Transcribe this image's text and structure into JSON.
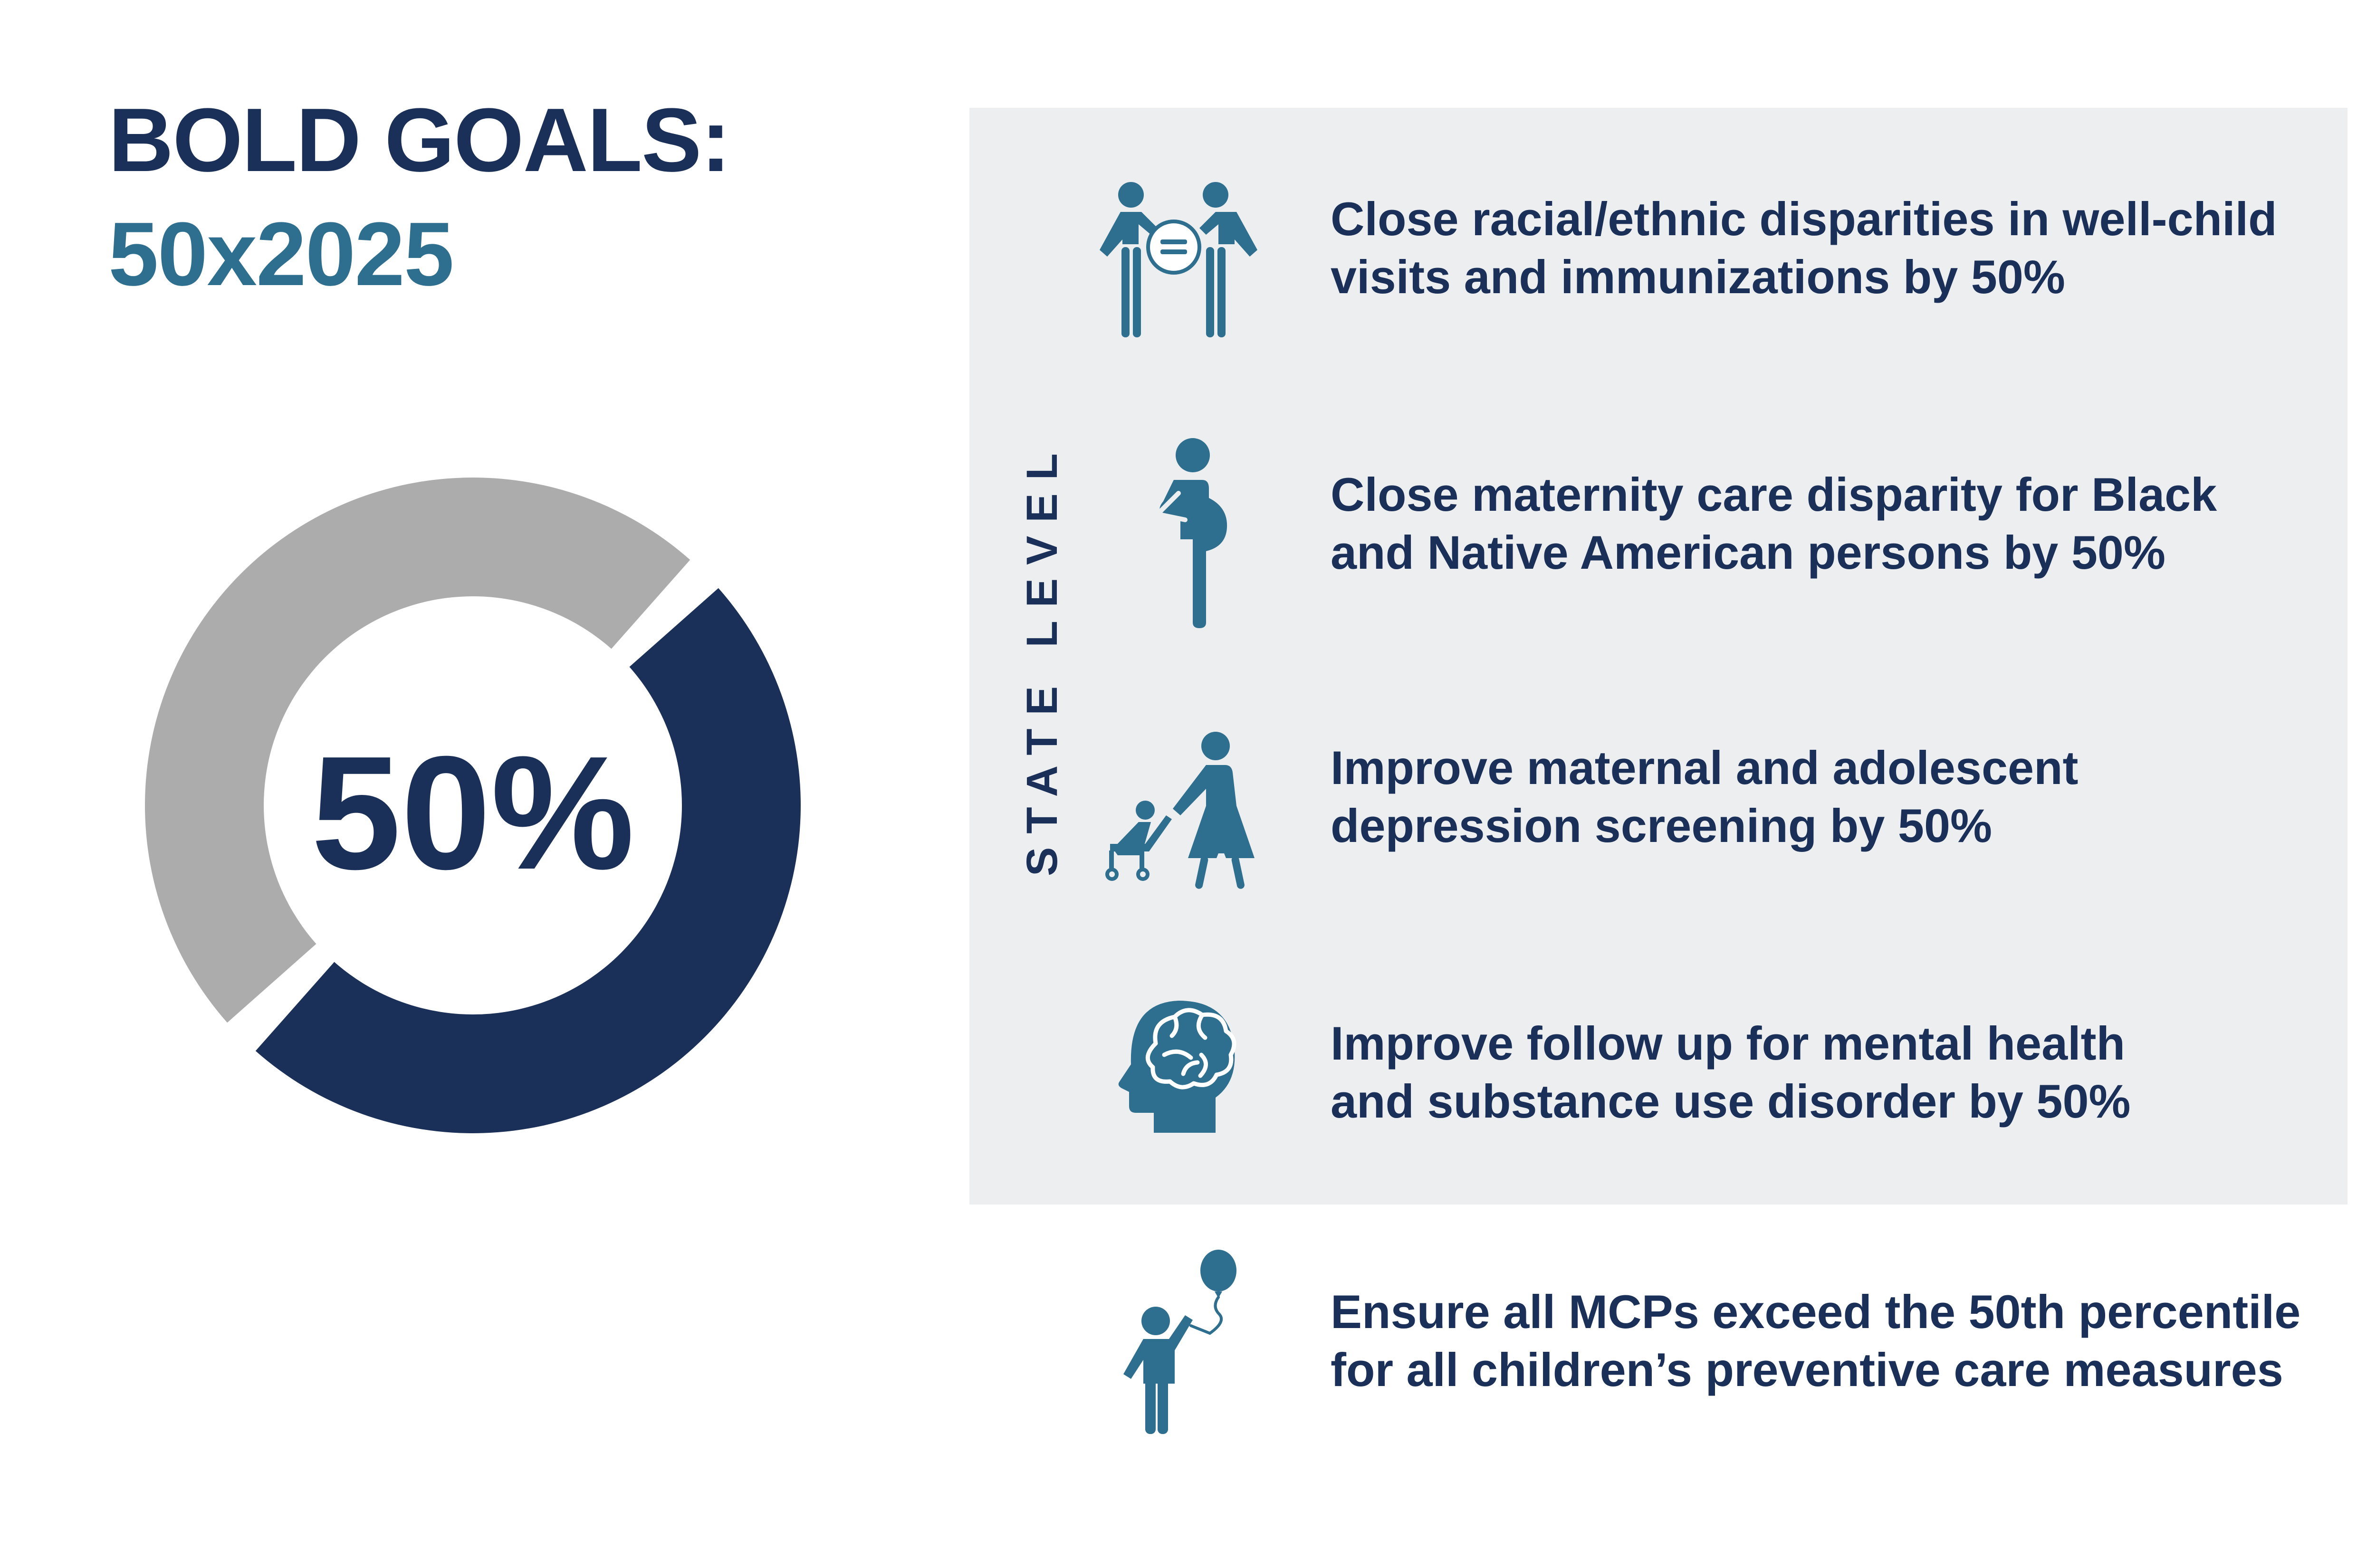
{
  "header": {
    "title": "BOLD GOALS:",
    "subtitle": "50x2025"
  },
  "donut": {
    "label": "50%",
    "fraction": 0.5,
    "filled_color": "#1b3058",
    "remaining_color": "#acacac"
  },
  "panel": {
    "label": "STATE LEVEL"
  },
  "colors": {
    "navy": "#1b3058",
    "teal": "#2e6e8e",
    "panel_bg": "#edeef0"
  },
  "goals": [
    {
      "icon": "equality-people-icon",
      "lines": [
        "Close racial/ethnic disparities in well-child",
        "visits and immunizations by 50%"
      ]
    },
    {
      "icon": "pregnant-person-icon",
      "lines": [
        "Close maternity care disparity for Black",
        "and Native American persons by 50%"
      ]
    },
    {
      "icon": "parent-stroller-icon",
      "lines": [
        "Improve maternal and adolescent",
        "depression screening by 50%"
      ]
    },
    {
      "icon": "brain-head-icon",
      "lines": [
        "Improve follow up for mental health",
        "and substance use disorder by 50%"
      ]
    },
    {
      "icon": "child-balloon-icon",
      "lines": [
        "Ensure all MCPs exceed the 50th percentile",
        "for all children’s preventive care measures"
      ]
    }
  ]
}
